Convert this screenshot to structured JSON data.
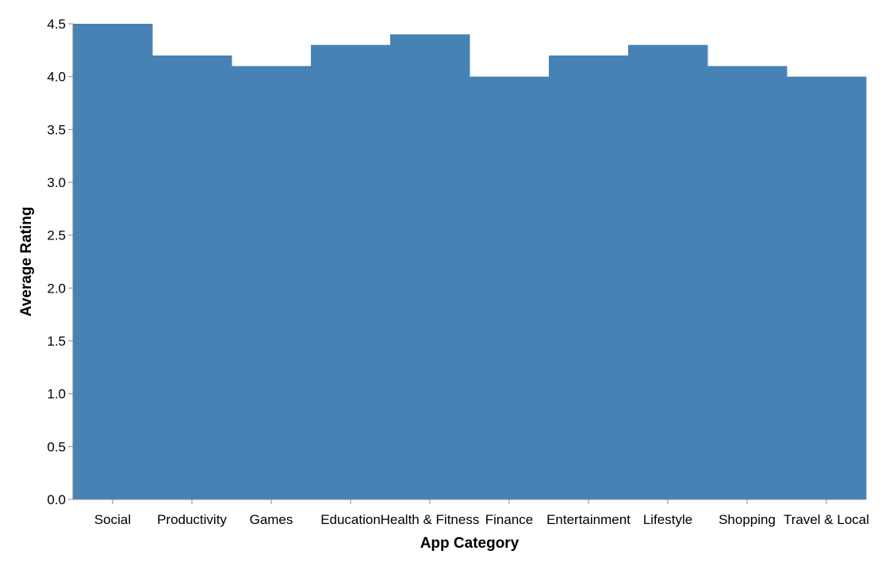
{
  "chart_data": {
    "type": "bar",
    "categories": [
      "Social",
      "Productivity",
      "Games",
      "Education",
      "Health & Fitness",
      "Finance",
      "Entertainment",
      "Lifestyle",
      "Shopping",
      "Travel & Local"
    ],
    "values": [
      4.5,
      4.2,
      4.1,
      4.3,
      4.4,
      4.0,
      4.2,
      4.3,
      4.1,
      4.0
    ],
    "title": "",
    "xlabel": "App Category",
    "ylabel": "Average Rating",
    "ylim": [
      0,
      4.5
    ],
    "yticks": [
      "0.0",
      "0.5",
      "1.0",
      "1.5",
      "2.0",
      "2.5",
      "3.0",
      "3.5",
      "4.0",
      "4.5"
    ],
    "bar_color": "#4682b4",
    "grid": false,
    "legend": "none"
  }
}
